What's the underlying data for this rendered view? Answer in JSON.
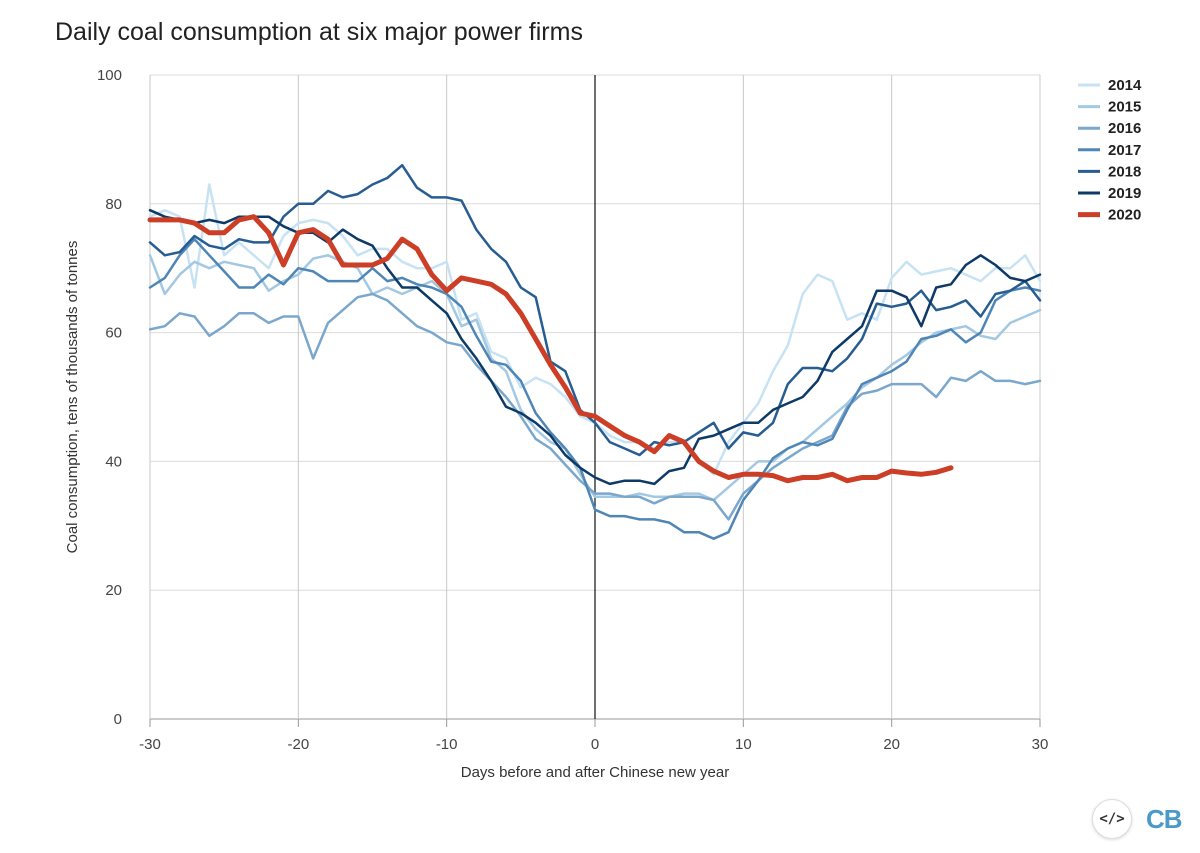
{
  "title": "Daily coal consumption at six major power firms",
  "logo": {
    "embed_icon_text": "</>",
    "brand_text": "CB"
  },
  "chart_data": {
    "type": "line",
    "xlabel": "Days before and after Chinese new year",
    "ylabel": "Coal consumption, tens of thousands of tonnes",
    "xlim": [
      -30,
      30
    ],
    "ylim": [
      0,
      100
    ],
    "xticks": [
      -30,
      -20,
      -10,
      0,
      10,
      20,
      30
    ],
    "yticks": [
      0,
      20,
      40,
      60,
      80,
      100
    ],
    "grid": true,
    "zero_line_x": 0,
    "legend_position": "top-right",
    "series": [
      {
        "name": "2014",
        "color": "#c7e3f3",
        "width": 2.5,
        "x": [
          -30,
          -29,
          -28,
          -27,
          -26,
          -25,
          -24,
          -23,
          -22,
          -21,
          -20,
          -19,
          -18,
          -17,
          -16,
          -15,
          -14,
          -13,
          -12,
          -11,
          -10,
          -9,
          -8,
          -7,
          -6,
          -5,
          -4,
          -3,
          -2,
          -1,
          0,
          1,
          2,
          3,
          4,
          5,
          6,
          7,
          8,
          9,
          10,
          11,
          12,
          13,
          14,
          15,
          16,
          17,
          18,
          19,
          20,
          21,
          22,
          23,
          24,
          25,
          26,
          27,
          28,
          29,
          30
        ],
        "values": [
          78,
          79,
          78,
          67,
          83,
          72,
          74,
          72,
          70,
          75,
          77,
          77.5,
          77,
          75,
          72,
          73,
          73,
          71,
          70,
          70,
          71,
          62,
          63,
          57,
          56,
          51.5,
          53,
          52,
          50,
          47,
          46,
          44,
          43,
          43,
          42,
          43,
          43,
          40,
          38,
          43,
          46,
          49,
          54,
          58,
          66,
          69,
          68,
          62,
          63,
          62,
          68.5,
          71,
          69,
          69.5,
          70,
          69,
          68,
          70,
          70,
          72,
          68
        ]
      },
      {
        "name": "2015",
        "color": "#a3c8e2",
        "width": 2.5,
        "x": [
          -30,
          -29,
          -28,
          -27,
          -26,
          -25,
          -24,
          -23,
          -22,
          -21,
          -20,
          -19,
          -18,
          -17,
          -16,
          -15,
          -14,
          -13,
          -12,
          -11,
          -10,
          -9,
          -8,
          -7,
          -6,
          -5,
          -4,
          -3,
          -2,
          -1,
          0,
          1,
          2,
          3,
          4,
          5,
          6,
          7,
          8,
          9,
          10,
          11,
          12,
          13,
          14,
          15,
          16,
          17,
          18,
          19,
          20,
          21,
          22,
          23,
          24,
          25,
          26,
          27,
          28,
          29,
          30
        ],
        "values": [
          72,
          66,
          69,
          71,
          70,
          71,
          70.5,
          70,
          66.5,
          68,
          69,
          71.5,
          72,
          71,
          70,
          66,
          67,
          66,
          67,
          68,
          66,
          61,
          62,
          56,
          54,
          48,
          45,
          43,
          42,
          38,
          34.5,
          34.5,
          34.5,
          35,
          34.5,
          34.5,
          35,
          35,
          34,
          36,
          38,
          40,
          40,
          42,
          43,
          45,
          47,
          49,
          51.5,
          53,
          55,
          56.5,
          58.5,
          60,
          60.5,
          61,
          59.5,
          59,
          61.5,
          62.5,
          63.5
        ]
      },
      {
        "name": "2016",
        "color": "#7ba7cc",
        "width": 2.5,
        "x": [
          -30,
          -29,
          -28,
          -27,
          -26,
          -25,
          -24,
          -23,
          -22,
          -21,
          -20,
          -19,
          -18,
          -17,
          -16,
          -15,
          -14,
          -13,
          -12,
          -11,
          -10,
          -9,
          -8,
          -7,
          -6,
          -5,
          -4,
          -3,
          -2,
          -1,
          0,
          1,
          2,
          3,
          4,
          5,
          6,
          7,
          8,
          9,
          10,
          11,
          12,
          13,
          14,
          15,
          16,
          17,
          18,
          19,
          20,
          21,
          22,
          23,
          24,
          25,
          26,
          27,
          28,
          29,
          30
        ],
        "values": [
          60.5,
          61,
          63,
          62.5,
          59.5,
          61,
          63,
          63,
          61.5,
          62.5,
          62.5,
          56,
          61.5,
          63.5,
          65.5,
          66,
          65,
          63,
          61,
          60,
          58.5,
          58,
          55,
          52.5,
          50,
          47,
          43.5,
          42,
          39.5,
          37,
          35,
          35,
          34.5,
          34.5,
          33.5,
          34.5,
          34.5,
          34.5,
          34,
          31,
          35,
          37,
          39,
          40.5,
          42,
          43,
          44,
          48.5,
          50.5,
          51,
          52,
          52,
          52,
          50,
          53,
          52.5,
          54,
          52.5,
          52.5,
          52,
          52.5
        ]
      },
      {
        "name": "2017",
        "color": "#4f86b6",
        "width": 2.5,
        "x": [
          -30,
          -29,
          -28,
          -27,
          -26,
          -25,
          -24,
          -23,
          -22,
          -21,
          -20,
          -19,
          -18,
          -17,
          -16,
          -15,
          -14,
          -13,
          -12,
          -11,
          -10,
          -9,
          -8,
          -7,
          -6,
          -5,
          -4,
          -3,
          -2,
          -1,
          0,
          1,
          2,
          3,
          4,
          5,
          6,
          7,
          8,
          9,
          10,
          11,
          12,
          13,
          14,
          15,
          16,
          17,
          18,
          19,
          20,
          21,
          22,
          23,
          24,
          25,
          26,
          27,
          28,
          29,
          30
        ],
        "values": [
          67,
          68.5,
          72,
          74.5,
          72,
          69.5,
          67,
          67,
          69,
          67.5,
          70,
          69.5,
          68,
          68,
          68,
          70,
          68,
          68.5,
          67.5,
          67,
          66,
          64,
          59.5,
          55.5,
          55,
          52.5,
          47.5,
          44.5,
          42,
          39,
          32.5,
          31.5,
          31.5,
          31,
          31,
          30.5,
          29,
          29,
          28,
          29,
          34,
          37,
          40.5,
          42,
          43,
          42.5,
          43.5,
          48,
          52,
          53,
          54,
          55.5,
          59,
          59.5,
          60.5,
          58.5,
          60,
          65,
          66.5,
          67,
          66.5
        ]
      },
      {
        "name": "2018",
        "color": "#275d91",
        "width": 2.5,
        "x": [
          -30,
          -29,
          -28,
          -27,
          -26,
          -25,
          -24,
          -23,
          -22,
          -21,
          -20,
          -19,
          -18,
          -17,
          -16,
          -15,
          -14,
          -13,
          -12,
          -11,
          -10,
          -9,
          -8,
          -7,
          -6,
          -5,
          -4,
          -3,
          -2,
          -1,
          0,
          1,
          2,
          3,
          4,
          5,
          6,
          7,
          8,
          9,
          10,
          11,
          12,
          13,
          14,
          15,
          16,
          17,
          18,
          19,
          20,
          21,
          22,
          23,
          24,
          25,
          26,
          27,
          28,
          29,
          30
        ],
        "values": [
          74,
          72,
          72.5,
          75,
          73.5,
          73,
          74.5,
          74,
          74,
          78,
          80,
          80,
          82,
          81,
          81.5,
          83,
          84,
          86,
          82.5,
          81,
          81,
          80.5,
          76,
          73,
          71,
          67,
          65.5,
          55.5,
          54,
          48,
          46,
          43,
          42,
          41,
          43,
          42.5,
          43,
          44.5,
          46,
          42,
          44.5,
          44,
          46,
          52,
          54.5,
          54.5,
          54,
          56,
          59,
          64.5,
          64,
          64.5,
          66.5,
          63.5,
          64,
          65,
          62.5,
          66,
          66.5,
          68,
          65
        ]
      },
      {
        "name": "2019",
        "color": "#0d3a66",
        "width": 2.5,
        "x": [
          -30,
          -29,
          -28,
          -27,
          -26,
          -25,
          -24,
          -23,
          -22,
          -21,
          -20,
          -19,
          -18,
          -17,
          -16,
          -15,
          -14,
          -13,
          -12,
          -11,
          -10,
          -9,
          -8,
          -7,
          -6,
          -5,
          -4,
          -3,
          -2,
          -1,
          0,
          1,
          2,
          3,
          4,
          5,
          6,
          7,
          8,
          9,
          10,
          11,
          12,
          13,
          14,
          15,
          16,
          17,
          18,
          19,
          20,
          21,
          22,
          23,
          24,
          25,
          26,
          27,
          28,
          29,
          30
        ],
        "values": [
          79,
          78,
          77.5,
          77,
          77.5,
          77,
          78,
          78,
          78,
          76.5,
          75.5,
          75.5,
          74,
          76,
          74.5,
          73.5,
          70,
          67,
          67,
          65,
          63,
          59,
          56,
          52.5,
          48.5,
          47.5,
          46,
          44,
          41,
          39,
          37.5,
          36.5,
          37,
          37,
          36.5,
          38.5,
          39,
          43.5,
          44,
          45,
          46,
          46,
          48,
          49,
          50,
          52.5,
          57,
          59,
          61,
          66.5,
          66.5,
          65.5,
          61,
          67,
          67.5,
          70.5,
          72,
          70.5,
          68.5,
          68,
          69
        ]
      },
      {
        "name": "2020",
        "color": "#cc3e26",
        "width": 5,
        "x": [
          -30,
          -29,
          -28,
          -27,
          -26,
          -25,
          -24,
          -23,
          -22,
          -21,
          -20,
          -19,
          -18,
          -17,
          -16,
          -15,
          -14,
          -13,
          -12,
          -11,
          -10,
          -9,
          -8,
          -7,
          -6,
          -5,
          -4,
          -3,
          -2,
          -1,
          0,
          1,
          2,
          3,
          4,
          5,
          6,
          7,
          8,
          9,
          10,
          11,
          12,
          13,
          14,
          15,
          16,
          17,
          18,
          19,
          20,
          21,
          22,
          23,
          24
        ],
        "values": [
          77.5,
          77.5,
          77.5,
          77,
          75.5,
          75.5,
          77.5,
          78,
          75.5,
          70.5,
          75.5,
          76,
          74.5,
          70.5,
          70.5,
          70.5,
          71.5,
          74.5,
          73,
          69,
          66.5,
          68.5,
          68,
          67.5,
          66,
          63,
          59,
          55,
          51.5,
          47.5,
          47,
          45.5,
          44,
          43,
          41.5,
          44,
          43,
          40,
          38.5,
          37.5,
          38,
          38,
          37.8,
          37,
          37.5,
          37.5,
          38,
          37,
          37.5,
          37.5,
          38.5,
          38.2,
          38,
          38.3,
          39
        ]
      }
    ]
  }
}
